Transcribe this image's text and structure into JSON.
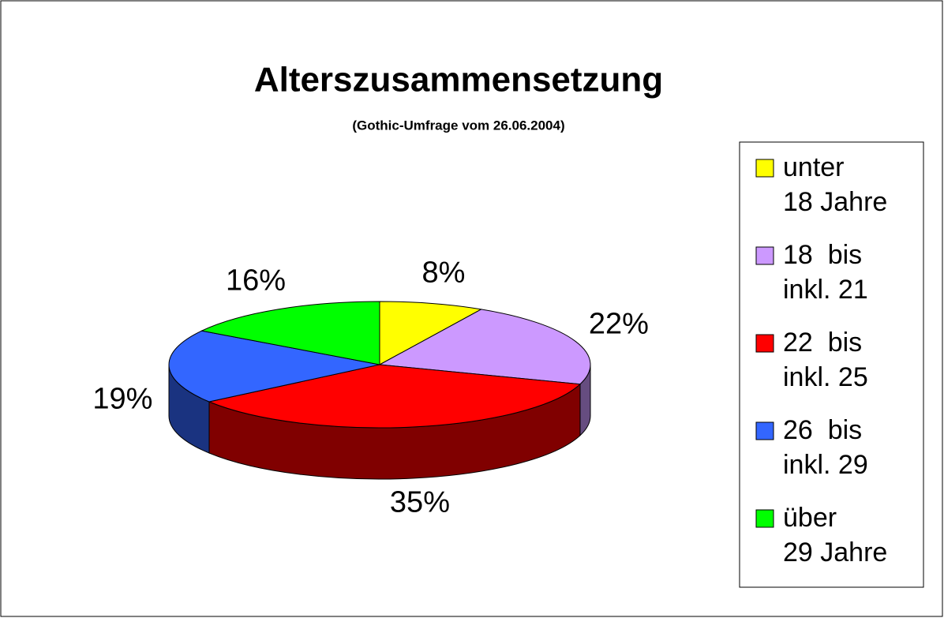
{
  "chart_data": {
    "type": "pie3d",
    "title": "Alterszusammensetzung",
    "subtitle": "(Gothic-Umfrage vom 26.06.2004)",
    "categories": [
      "unter\n18 Jahre",
      "18  bis\ninkl. 21",
      "22  bis\ninkl. 25",
      "26  bis\ninkl. 29",
      "über\n29 Jahre"
    ],
    "values": [
      8,
      22,
      35,
      19,
      16
    ],
    "value_labels": [
      "8%",
      "22%",
      "35%",
      "19%",
      "16%"
    ],
    "colors": [
      "#ffff00",
      "#cc99ff",
      "#ff0000",
      "#3366ff",
      "#00ff00"
    ],
    "legend": "right"
  }
}
